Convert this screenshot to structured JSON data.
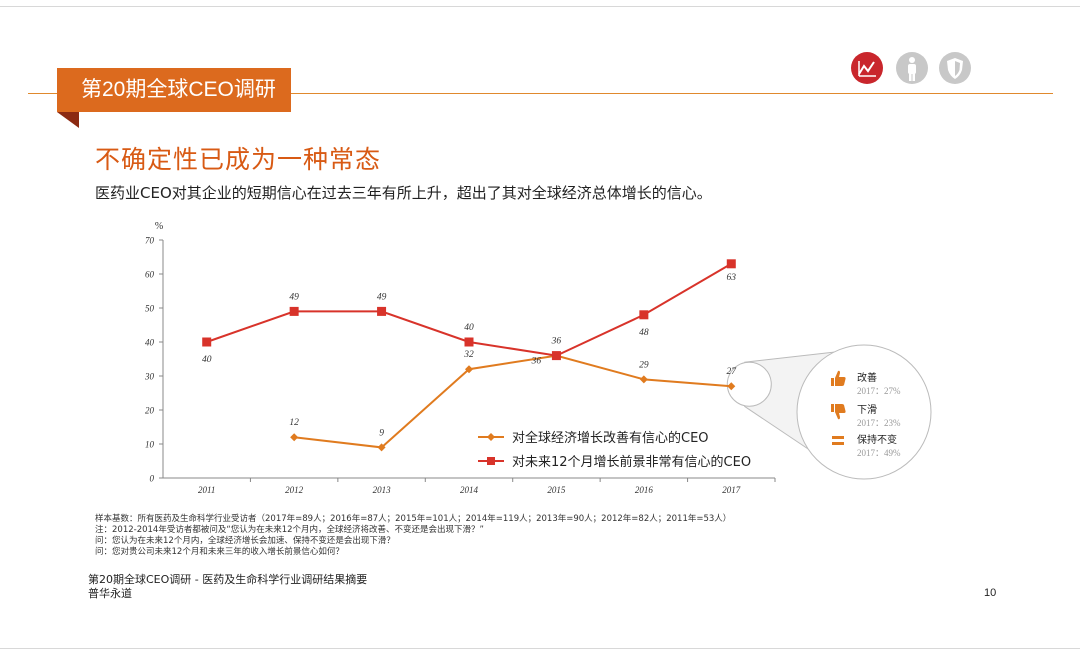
{
  "header": {
    "tab_label": "第20期全球CEO调研"
  },
  "top_icons": [
    {
      "name": "chart-trend-icon",
      "color": "#c9262c"
    },
    {
      "name": "person-icon",
      "color": "#c8c8c8"
    },
    {
      "name": "shield-icon",
      "color": "#c8c8c8"
    }
  ],
  "title": "不确定性已成为一种常态",
  "subtitle": "医药业CEO对其企业的短期信心在过去三年有所上升，超出了其对全球经济总体增长的信心。",
  "chart_data": {
    "type": "line",
    "y_unit_label": "%",
    "ylim": [
      0,
      70
    ],
    "yticks": [
      0,
      10,
      20,
      30,
      40,
      50,
      60,
      70
    ],
    "categories": [
      "2011",
      "2012",
      "2013",
      "2014",
      "2015",
      "2016",
      "2017"
    ],
    "series": [
      {
        "name": "对全球经济增长改善有信心的CEO",
        "color": "#e07b1f",
        "marker": "diamond",
        "values": [
          null,
          12,
          9,
          32,
          36,
          29,
          27
        ]
      },
      {
        "name": "对未来12个月增长前景非常有信心的CEO",
        "color": "#d8332a",
        "marker": "square",
        "values": [
          40,
          49,
          49,
          40,
          36,
          48,
          63
        ]
      }
    ],
    "legend_position": "bottom-right",
    "grid": false,
    "callout": {
      "items": [
        {
          "icon": "thumbs-up-icon",
          "label": "改善",
          "detail": "2017：27%",
          "value": 27
        },
        {
          "icon": "thumbs-down-icon",
          "label": "下滑",
          "detail": "2017：23%",
          "value": 23
        },
        {
          "icon": "equal-icon",
          "label": "保持不变",
          "detail": "2017：49%",
          "value": 49
        }
      ]
    }
  },
  "footnotes": [
    "样本基数：所有医药及生命科学行业受访者（2017年=89人；2016年=87人；2015年=101人；2014年=119人；2013年=90人；2012年=82人；2011年=53人）",
    "注：2012-2014年受访者都被问及“您认为在未来12个月内，全球经济将改善、不变还是会出现下滑？”",
    "问：您认为在未来12个月内，全球经济增长会加速、保持不变还是会出现下滑？",
    "问：您对贵公司未来12个月和未来三年的收入增长前景信心如何？"
  ],
  "footer": {
    "line1": "第20期全球CEO调研 - 医药及生命科学行业调研结果摘要",
    "line2": "普华永道",
    "page_number": "10"
  }
}
